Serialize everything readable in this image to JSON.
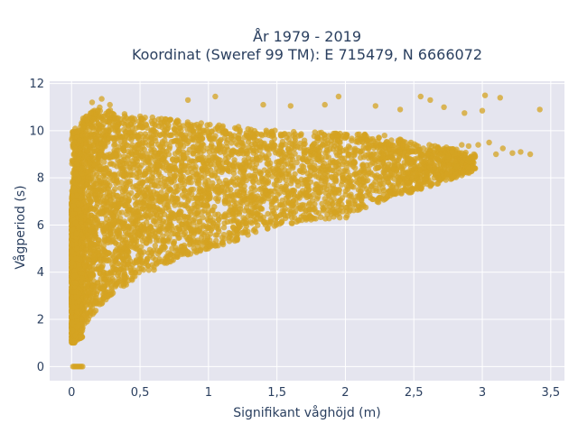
{
  "chart_data": {
    "type": "scatter",
    "title_line1": "År 1979 - 2019",
    "title_line2": "Koordinat (Sweref 99 TM): E 715479, N 6666072",
    "xlabel": "Signifikant våghöjd (m)",
    "ylabel": "Vågperiod (s)",
    "xlim": [
      -0.16,
      3.6
    ],
    "ylim": [
      -0.6,
      12.1
    ],
    "x_ticks": [
      {
        "value": 0,
        "label": "0"
      },
      {
        "value": 0.5,
        "label": "0,5"
      },
      {
        "value": 1,
        "label": "1"
      },
      {
        "value": 1.5,
        "label": "1,5"
      },
      {
        "value": 2,
        "label": "2"
      },
      {
        "value": 2.5,
        "label": "2,5"
      },
      {
        "value": 3,
        "label": "3"
      },
      {
        "value": 3.5,
        "label": "3,5"
      }
    ],
    "y_ticks": [
      {
        "value": 0,
        "label": "0"
      },
      {
        "value": 2,
        "label": "2"
      },
      {
        "value": 4,
        "label": "4"
      },
      {
        "value": 6,
        "label": "6"
      },
      {
        "value": 8,
        "label": "8"
      },
      {
        "value": 10,
        "label": "10"
      },
      {
        "value": 12,
        "label": "12"
      }
    ],
    "grid": true,
    "marker_color": "#d4a321",
    "plot_bg": "#e5e5ef",
    "envelope": {
      "lower": [
        [
          0.0,
          1.0
        ],
        [
          0.05,
          1.0
        ],
        [
          0.1,
          1.8
        ],
        [
          0.2,
          2.5
        ],
        [
          0.3,
          3.1
        ],
        [
          0.5,
          3.8
        ],
        [
          0.75,
          4.5
        ],
        [
          1.0,
          5.0
        ],
        [
          1.25,
          5.4
        ],
        [
          1.5,
          6.0
        ],
        [
          2.0,
          6.3
        ],
        [
          2.3,
          7.1
        ],
        [
          2.5,
          7.4
        ],
        [
          2.75,
          7.9
        ],
        [
          2.95,
          8.3
        ]
      ],
      "upper": [
        [
          0.0,
          7.0
        ],
        [
          0.03,
          9.0
        ],
        [
          0.08,
          10.6
        ],
        [
          0.2,
          11.0
        ],
        [
          0.4,
          10.7
        ],
        [
          0.7,
          10.5
        ],
        [
          1.0,
          10.3
        ],
        [
          1.5,
          10.0
        ],
        [
          2.0,
          9.9
        ],
        [
          2.3,
          9.8
        ],
        [
          2.5,
          9.5
        ],
        [
          2.75,
          9.3
        ],
        [
          2.95,
          9.0
        ]
      ]
    },
    "zero_period_points": [
      [
        0.01,
        0
      ],
      [
        0.02,
        0
      ],
      [
        0.03,
        0
      ],
      [
        0.04,
        0
      ],
      [
        0.05,
        0
      ],
      [
        0.06,
        0
      ],
      [
        0.07,
        0
      ],
      [
        0.08,
        0
      ]
    ],
    "outlier_points": [
      [
        0.15,
        11.2
      ],
      [
        0.22,
        11.35
      ],
      [
        0.28,
        11.1
      ],
      [
        0.85,
        11.3
      ],
      [
        1.05,
        11.45
      ],
      [
        1.4,
        11.1
      ],
      [
        1.6,
        11.05
      ],
      [
        1.85,
        11.1
      ],
      [
        1.95,
        11.45
      ],
      [
        2.22,
        11.05
      ],
      [
        2.4,
        10.9
      ],
      [
        2.55,
        11.45
      ],
      [
        2.62,
        11.3
      ],
      [
        2.72,
        11.0
      ],
      [
        2.87,
        10.75
      ],
      [
        3.02,
        11.5
      ],
      [
        3.13,
        11.4
      ],
      [
        3.0,
        10.85
      ],
      [
        3.05,
        9.5
      ],
      [
        3.15,
        9.25
      ],
      [
        3.22,
        9.05
      ],
      [
        3.1,
        9.0
      ],
      [
        3.28,
        9.1
      ],
      [
        3.35,
        9.0
      ],
      [
        3.42,
        10.9
      ],
      [
        2.85,
        9.4
      ],
      [
        2.9,
        9.35
      ],
      [
        2.97,
        9.4
      ],
      [
        2.78,
        9.1
      ],
      [
        2.8,
        8.7
      ],
      [
        2.72,
        8.5
      ],
      [
        2.62,
        8.7
      ],
      [
        2.55,
        8.2
      ],
      [
        2.68,
        8.0
      ],
      [
        2.45,
        8.6
      ],
      [
        2.4,
        9.1
      ],
      [
        2.35,
        8.4
      ],
      [
        2.6,
        9.0
      ],
      [
        2.75,
        8.9
      ],
      [
        2.9,
        8.8
      ],
      [
        2.65,
        9.2
      ]
    ],
    "scatter_point_count": 5200
  }
}
